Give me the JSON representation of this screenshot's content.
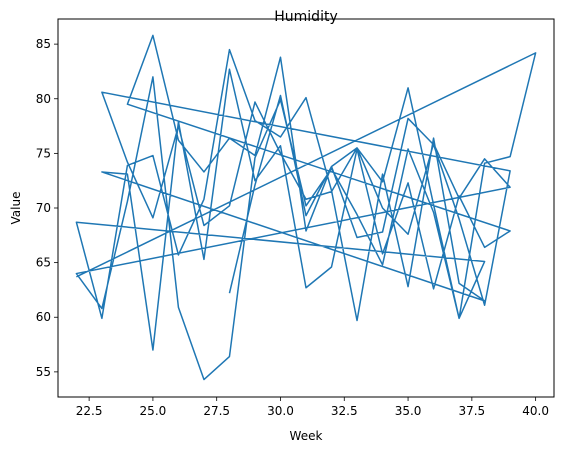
{
  "chart_data": {
    "type": "line",
    "title": "Humidity",
    "xlabel": "Week",
    "ylabel": "Value",
    "xlim": [
      21.28,
      40.72
    ],
    "ylim": [
      52.7,
      87.3
    ],
    "xticks": [
      22.5,
      25.0,
      27.5,
      30.0,
      32.5,
      35.0,
      37.5,
      40.0
    ],
    "xtick_labels": [
      "22.5",
      "25.0",
      "27.5",
      "30.0",
      "32.5",
      "35.0",
      "37.5",
      "40.0"
    ],
    "yticks": [
      55,
      60,
      65,
      70,
      75,
      80,
      85
    ],
    "ytick_labels": [
      "55",
      "60",
      "65",
      "70",
      "75",
      "80",
      "85"
    ],
    "grid": false,
    "legend": null,
    "series": [
      {
        "color": "#1f77b4",
        "x": [
          28,
          29,
          30,
          31,
          32,
          33,
          34,
          35,
          36,
          37,
          38,
          22,
          23,
          24,
          25,
          26,
          27,
          28,
          29,
          30,
          31,
          32,
          33,
          34,
          35,
          36,
          37,
          38,
          23,
          24,
          25,
          26,
          27,
          28,
          29,
          30,
          31,
          32,
          33,
          34,
          35,
          36,
          37,
          38,
          39,
          24,
          25,
          26,
          27,
          28,
          29,
          30,
          31,
          32,
          33,
          34,
          35,
          36,
          37,
          38,
          39,
          23,
          24,
          25,
          26,
          27,
          28,
          29,
          30,
          31,
          32,
          33,
          34,
          35,
          36,
          37,
          38,
          39,
          22,
          23,
          24,
          25,
          26,
          27,
          28,
          29,
          30,
          31,
          32,
          33,
          34,
          35,
          36,
          37,
          38,
          39,
          40,
          22
        ],
        "y": [
          62.2,
          72.1,
          80.3,
          69.3,
          73.8,
          75.5,
          72.4,
          81.0,
          70.3,
          59.9,
          65.1,
          68.7,
          59.9,
          73.9,
          74.8,
          65.7,
          70.8,
          84.5,
          78.0,
          76.5,
          80.1,
          71.6,
          59.7,
          73.1,
          62.8,
          76.4,
          63.1,
          61.5,
          73.3,
          73.1,
          57.0,
          77.9,
          65.3,
          82.7,
          72.5,
          75.7,
          62.7,
          64.6,
          75.4,
          65.8,
          72.3,
          62.6,
          71.1,
          66.4,
          67.9,
          79.5,
          85.8,
          76.2,
          73.3,
          76.4,
          74.8,
          83.8,
          67.9,
          73.8,
          67.3,
          67.8,
          78.2,
          75.8,
          69.0,
          61.1,
          73.4,
          80.6,
          74.2,
          69.1,
          77.5,
          68.4,
          70.2,
          79.7,
          75.0,
          70.8,
          71.5,
          75.5,
          70.0,
          67.6,
          75.9,
          70.9,
          74.5,
          71.9,
          64.0,
          60.8,
          70.6,
          82.0,
          60.9,
          54.3,
          56.4,
          74.6,
          79.9,
          70.2,
          73.6,
          69.4,
          64.8,
          75.4,
          69.6,
          59.9,
          74.1,
          74.7,
          84.2,
          63.7
        ]
      }
    ]
  }
}
